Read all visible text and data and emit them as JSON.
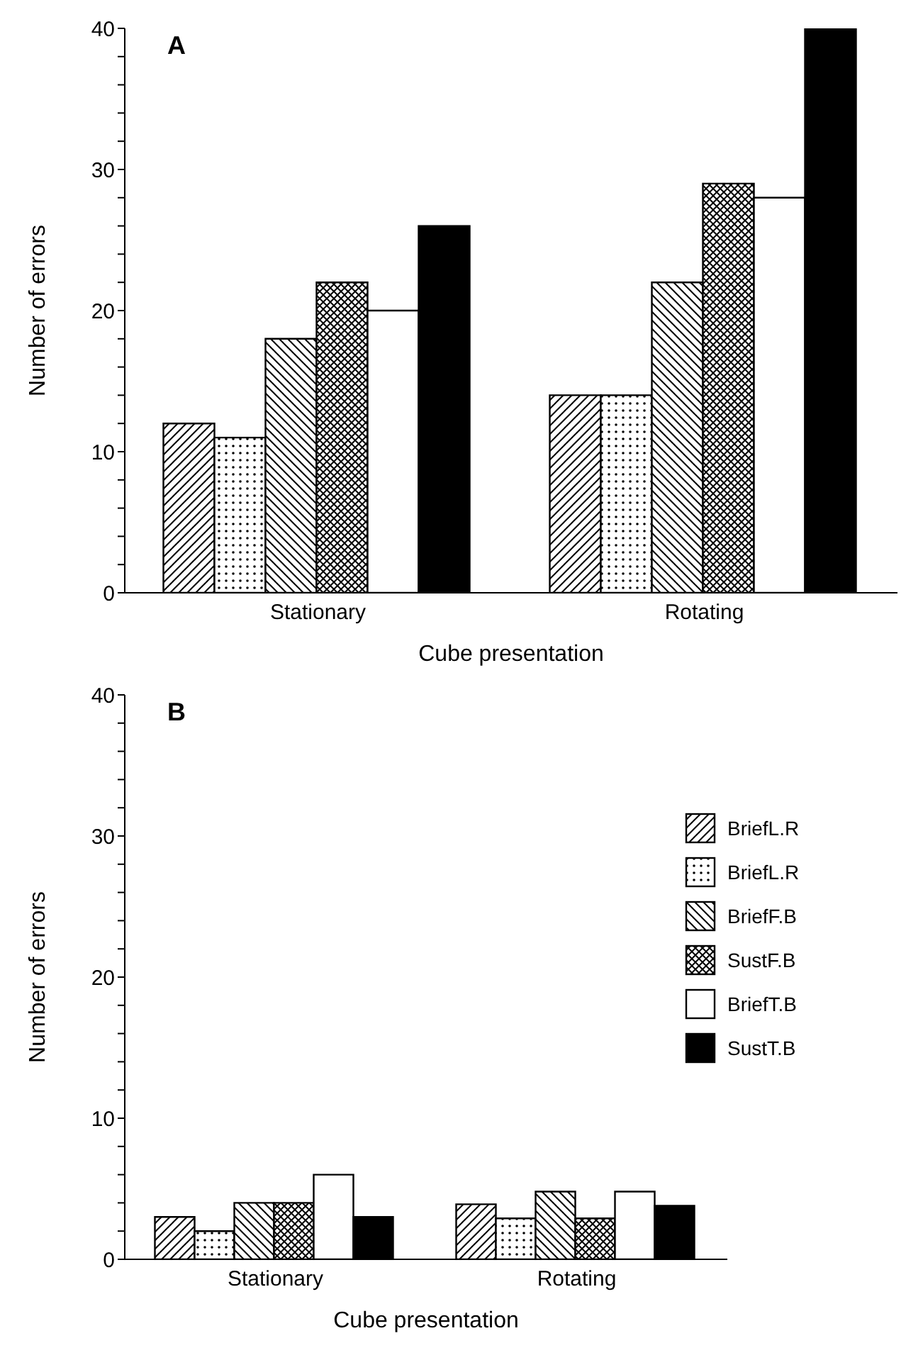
{
  "chart_data": [
    {
      "type": "bar",
      "title": "A",
      "xlabel": "Cube presentation",
      "ylabel": "Number of errors",
      "categories": [
        "Stationary",
        "Rotating"
      ],
      "series": [
        {
          "color": "#000000",
          "values": [
            12,
            14
          ]
        },
        {
          "color": "#000000",
          "values": [
            11,
            14
          ]
        },
        {
          "color": "#000000",
          "values": [
            18,
            22
          ]
        },
        {
          "color": "#000000",
          "values": [
            22,
            29
          ]
        },
        {
          "color": "#ffffff",
          "values": [
            20,
            28
          ]
        },
        {
          "color": "#000000",
          "values": [
            26,
            40
          ]
        }
      ],
      "ylim": [
        0,
        40
      ],
      "yticks": [
        0,
        {
          "value": 2,
          "label": null
        },
        {
          "value": 4,
          "label": null
        },
        {
          "value": 6,
          "label": null
        },
        {
          "value": 8,
          "label": null
        },
        10,
        {
          "value": 12,
          "label": null
        },
        {
          "value": 14,
          "label": null
        },
        {
          "value": 16,
          "label": null
        },
        {
          "value": 18,
          "label": null
        },
        20,
        {
          "value": 22,
          "label": null
        },
        {
          "value": 24,
          "label": null
        },
        {
          "value": 26,
          "label": null
        },
        {
          "value": 28,
          "label": null
        },
        30,
        {
          "value": 32,
          "label": null
        },
        {
          "value": 34,
          "label": null
        },
        {
          "value": 36,
          "label": null
        },
        {
          "value": 38,
          "label": null
        },
        40
      ],
      "grid": false,
      "legend": false
    },
    {
      "type": "bar",
      "title": "B",
      "xlabel": "Cube presentation",
      "ylabel": "Number of errors",
      "categories": [
        "Stationary",
        "Rotating"
      ],
      "series": [
        {
          "name": "BriefL.R",
          "color": "#000000",
          "values": [
            3,
            3.9
          ]
        },
        {
          "name": "BriefL.R",
          "color": "#000000",
          "values": [
            2,
            2.9
          ]
        },
        {
          "name": "BriefF.B",
          "color": "#000000",
          "values": [
            4,
            4.8
          ]
        },
        {
          "name": "SustF.B",
          "color": "#000000",
          "values": [
            4,
            2.9
          ]
        },
        {
          "name": "BriefT.B",
          "color": "#ffffff",
          "values": [
            6,
            4.8
          ]
        },
        {
          "name": "SustT.B",
          "color": "#000000",
          "values": [
            3,
            3.8
          ]
        }
      ],
      "ylim": [
        0,
        40
      ],
      "yticks": [
        0,
        {
          "value": 2,
          "label": null
        },
        {
          "value": 4,
          "label": null
        },
        {
          "value": 6,
          "label": null
        },
        {
          "value": 8,
          "label": null
        },
        10,
        {
          "value": 12,
          "label": null
        },
        {
          "value": 14,
          "label": null
        },
        {
          "value": 16,
          "label": null
        },
        {
          "value": 18,
          "label": null
        },
        20,
        {
          "value": 22,
          "label": null
        },
        {
          "value": 24,
          "label": null
        },
        {
          "value": 26,
          "label": null
        },
        {
          "value": 28,
          "label": null
        },
        30,
        {
          "value": 32,
          "label": null
        },
        {
          "value": 34,
          "label": null
        },
        {
          "value": 36,
          "label": null
        },
        {
          "value": 38,
          "label": null
        },
        40
      ],
      "grid": false,
      "legend": "top right"
    }
  ]
}
